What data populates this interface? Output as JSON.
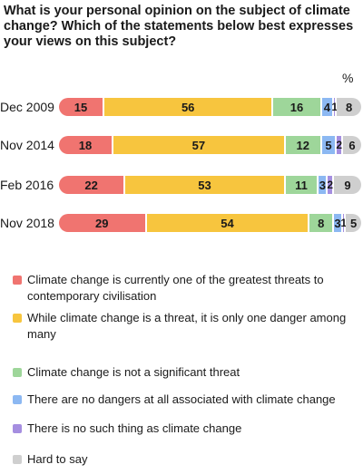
{
  "title": "What is your personal opinion on the subject of climate change? Which of the statements below best expresses your views on this subject?",
  "unit": "%",
  "colors": {
    "greatest_threat": "#f07470",
    "one_danger": "#f7c53e",
    "not_significant": "#9ed69a",
    "no_dangers": "#8cb8f2",
    "no_such_thing": "#a58ee0",
    "hard_to_say": "#cfcfcf"
  },
  "chart_data": {
    "type": "bar",
    "orientation": "horizontal",
    "stacked": true,
    "title": "What is your personal opinion on the subject of climate change? Which of the statements below best expresses your views on this subject?",
    "unit": "%",
    "categories": [
      "Dec 2009",
      "Nov 2014",
      "Feb 2016",
      "Nov 2018"
    ],
    "series": [
      {
        "name": "Climate change is currently one of the greatest threats to contemporary civilisation",
        "color": "#f07470",
        "values": [
          15,
          18,
          22,
          29
        ]
      },
      {
        "name": "While climate change is a threat, it is only one danger among many",
        "color": "#f7c53e",
        "values": [
          56,
          57,
          53,
          54
        ]
      },
      {
        "name": "Climate change is not a significant threat",
        "color": "#9ed69a",
        "values": [
          16,
          12,
          11,
          8
        ]
      },
      {
        "name": "There are no dangers at all associated with climate change",
        "color": "#8cb8f2",
        "values": [
          4,
          5,
          3,
          3
        ]
      },
      {
        "name": "There is no such thing as climate change",
        "color": "#a58ee0",
        "values": [
          1,
          2,
          2,
          1
        ]
      },
      {
        "name": "Hard to say",
        "color": "#cfcfcf",
        "values": [
          8,
          6,
          9,
          5
        ]
      }
    ],
    "legend_position": "bottom",
    "grid": false
  }
}
